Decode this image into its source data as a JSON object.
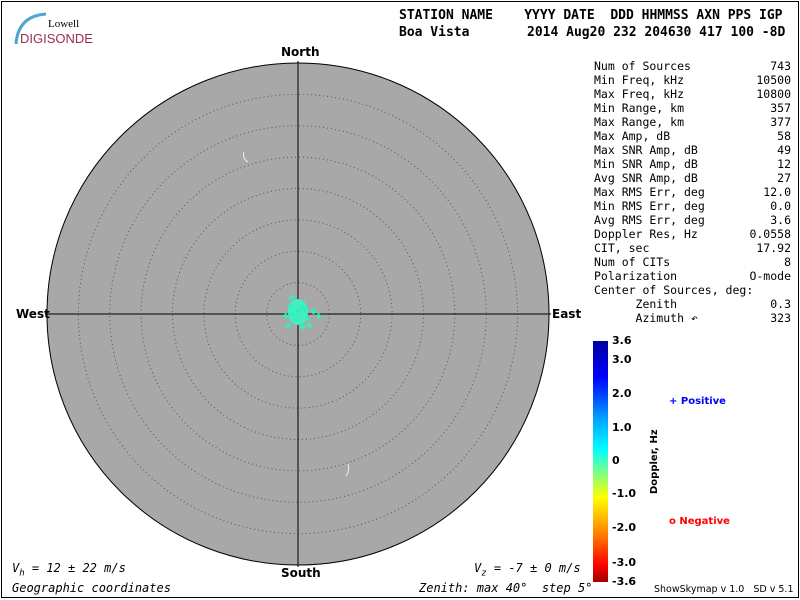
{
  "logo": {
    "line1": "Lowell",
    "line2": "DIGISONDE"
  },
  "header": {
    "row1": "STATION NAME    YYYY DATE  DDD HHMMSS AXN PPS IGP",
    "station": "Boa Vista",
    "row2": "2014 Aug20 232 204630 417 100 -8D"
  },
  "directions": {
    "north": "North",
    "south": "South",
    "east": "East",
    "west": "West"
  },
  "stats": [
    {
      "label": "Num of Sources",
      "value": "743"
    },
    {
      "label": "Min Freq, kHz",
      "value": "10500"
    },
    {
      "label": "Max Freq, kHz",
      "value": "10800"
    },
    {
      "label": "Min Range, km",
      "value": "357"
    },
    {
      "label": "Max Range, km",
      "value": "377"
    },
    {
      "label": "Max Amp, dB",
      "value": "58"
    },
    {
      "label": "Max SNR Amp, dB",
      "value": "49"
    },
    {
      "label": "Min SNR Amp, dB",
      "value": "12"
    },
    {
      "label": "Avg SNR Amp, dB",
      "value": "27"
    },
    {
      "label": "Max RMS Err, deg",
      "value": "12.0"
    },
    {
      "label": "Min RMS Err, deg",
      "value": "0.0"
    },
    {
      "label": "Avg RMS Err, deg",
      "value": "3.6"
    },
    {
      "label": "Doppler Res, Hz",
      "value": "0.0558"
    },
    {
      "label": "CIT, sec",
      "value": "17.92"
    },
    {
      "label": "Num of CITs",
      "value": "8"
    },
    {
      "label": "Polarization",
      "value": "O-mode"
    },
    {
      "label": "Center of Sources, deg:",
      "value": ""
    },
    {
      "label": "      Zenith",
      "value": "0.3"
    },
    {
      "label": "      Azimuth ↶",
      "value": "323"
    }
  ],
  "colorbar": {
    "title": "Doppler, Hz",
    "ticks": [
      "3.6",
      "3.0",
      "2.0",
      "1.0",
      "0",
      "-1.0",
      "-2.0",
      "-3.0",
      "-3.6"
    ],
    "positive": "Positive",
    "negative": "Negative",
    "positive_color": "#0000ff",
    "negative_color": "#ff0000"
  },
  "footer": {
    "vh": "V",
    "vh_sub": "h",
    "vh_rest": " = 12 ± 22 m/s",
    "vz": "V",
    "vz_sub": "z",
    "vz_rest": " = -7 ± 0 m/s",
    "coords": "Geographic coordinates",
    "zenith": "Zenith: max 40°  step 5°",
    "version": "ShowSkymap v 1.0   SD v 5.1"
  },
  "chart_data": {
    "type": "scatter",
    "coordinates": "polar zenith/azimuth",
    "zenith_max": 40,
    "zenith_step": 5,
    "background": "#a8a8a8",
    "center_of_sources": {
      "zenith": 0.3,
      "azimuth": 323
    },
    "doppler_range": [
      -3.6,
      3.6
    ],
    "points": [
      {
        "zen": 0.5,
        "az": 0,
        "doppler": 0.9
      },
      {
        "zen": 1.2,
        "az": 30,
        "doppler": 0.9
      },
      {
        "zen": 1.8,
        "az": 315,
        "doppler": 0.8
      },
      {
        "zen": 2.5,
        "az": 80,
        "doppler": 0.9
      },
      {
        "zen": 1.0,
        "az": 200,
        "doppler": 0.8
      },
      {
        "zen": 2.2,
        "az": 160,
        "doppler": 0.9
      },
      {
        "zen": 3.3,
        "az": 95,
        "doppler": 0.9
      },
      {
        "zen": 2.0,
        "az": 260,
        "doppler": 0.8
      },
      {
        "zen": 1.6,
        "az": 120,
        "doppler": 0.9
      },
      {
        "zen": 2.8,
        "az": 340,
        "doppler": 0.8
      },
      {
        "zen": 0.8,
        "az": 270,
        "doppler": 0.9
      },
      {
        "zen": 2.4,
        "az": 220,
        "doppler": 0.9
      },
      {
        "zen": 1.4,
        "az": 60,
        "doppler": 0.8
      },
      {
        "zen": 2.6,
        "az": 135,
        "doppler": 0.9
      }
    ]
  }
}
